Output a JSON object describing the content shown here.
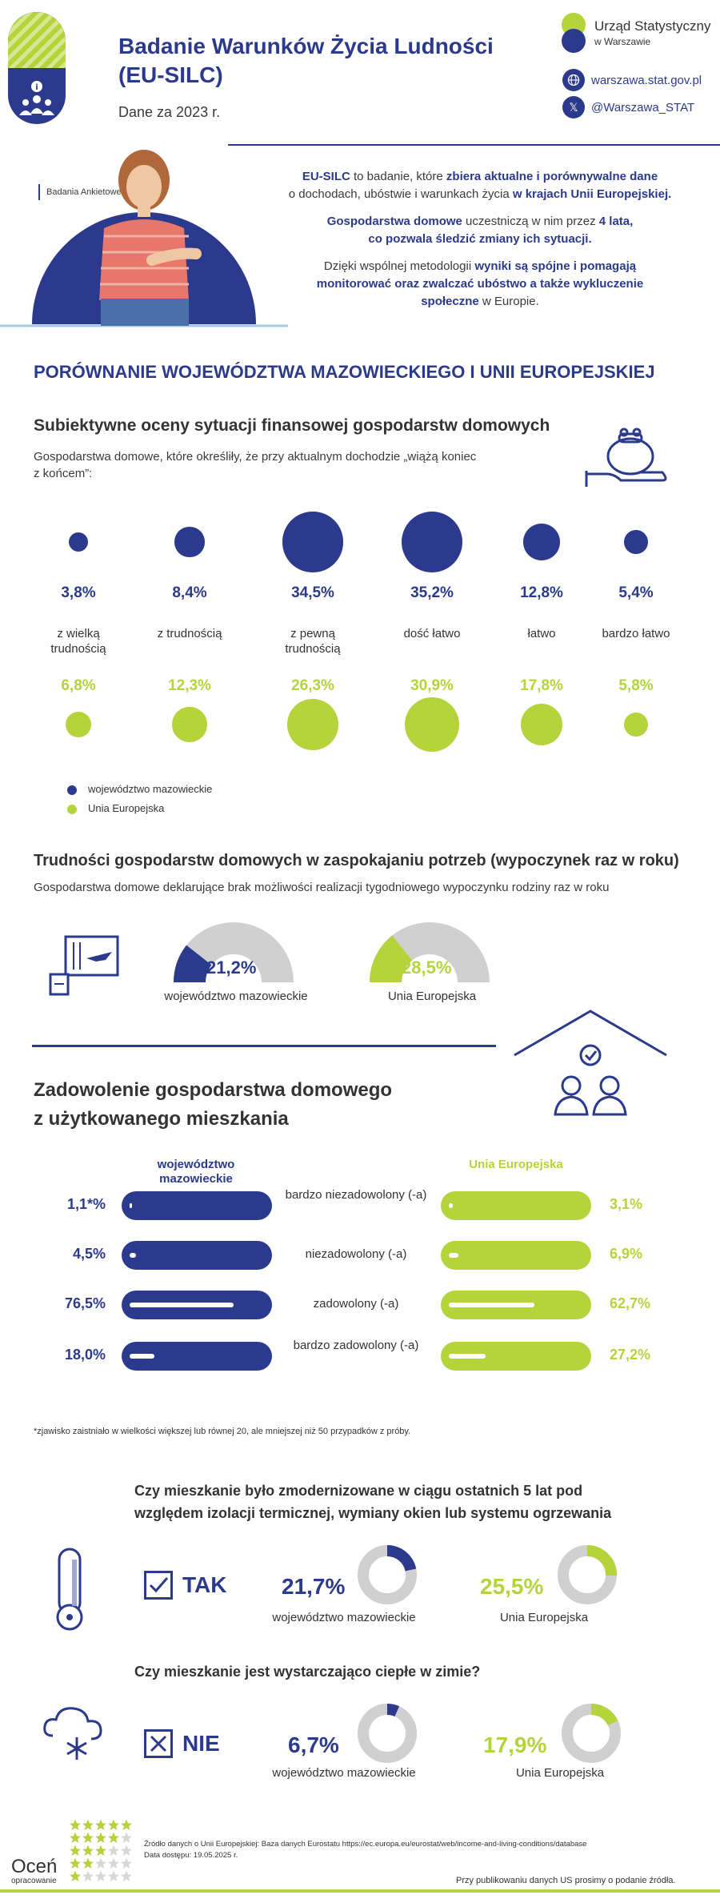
{
  "header": {
    "title": "Badanie Warunków Życia Ludności (EU-SILC)",
    "period": "Dane za 2023 r.",
    "org_name": "Urząd Statystyczny",
    "org_city": "w Warszawie",
    "website": "warszawa.stat.gov.pl",
    "twitter": "@Warszawa_STAT"
  },
  "intro": {
    "tag": "Badania Ankietowe",
    "p1_a": "EU-SILC",
    "p1_b": " to badanie, które ",
    "p1_c": "zbiera aktualne i porównywalne dane",
    "p1_d": " o dochodach, ubóstwie i warunkach życia ",
    "p1_e": "w krajach Unii Europejskiej.",
    "p2_a": "Gospodarstwa domowe",
    "p2_b": " uczestniczą w nim przez ",
    "p2_c": "4 lata,",
    "p2_d": "co pozwala śledzić zmiany ich sytuacji.",
    "p3_a": "Dzięki wspólnej metodologii ",
    "p3_b": "wyniki są spójne i pomagają monitorować oraz zwalczać ubóstwo a także wykluczenie społeczne",
    "p3_c": " w Europie."
  },
  "section_title": "PORÓWNANIE  WOJEWÓDZTWA MAZOWIECKIEGO I UNII EUROPEJSKIEJ",
  "finance": {
    "title": "Subiektywne oceny sytuacji finansowej gospodarstw domowych",
    "desc": "Gospodarstwa domowe, które określiły, że przy aktualnym dochodzie „wiążą koniec z końcem”:",
    "items": [
      {
        "cat": "z wielką trudnością",
        "maz": "3,8%",
        "eu": "6,8%",
        "maz_v": 3.8,
        "eu_v": 6.8
      },
      {
        "cat": "z trudnością",
        "maz": "8,4%",
        "eu": "12,3%",
        "maz_v": 8.4,
        "eu_v": 12.3
      },
      {
        "cat": "z pewną trudnością",
        "maz": "34,5%",
        "eu": "26,3%",
        "maz_v": 34.5,
        "eu_v": 26.3
      },
      {
        "cat": "dość łatwo",
        "maz": "35,2%",
        "eu": "30,9%",
        "maz_v": 35.2,
        "eu_v": 30.9
      },
      {
        "cat": "łatwo",
        "maz": "12,8%",
        "eu": "17,8%",
        "maz_v": 12.8,
        "eu_v": 17.8
      },
      {
        "cat": "bardzo łatwo",
        "maz": "5,4%",
        "eu": "5,8%",
        "maz_v": 5.4,
        "eu_v": 5.8
      }
    ],
    "legend_maz": "województwo mazowieckie",
    "legend_eu": "Unia Europejska",
    "color_maz": "#2b3a8c",
    "color_eu": "#b5d33b"
  },
  "holiday": {
    "title": "Trudności gospodarstw domowych w zaspokajaniu potrzeb (wypoczynek raz w roku)",
    "desc": "Gospodarstwa domowe deklarujące brak możliwości realizacji tygodniowego wypoczynku rodziny raz w roku",
    "maz_value": "21,2%",
    "maz_v": 21.2,
    "maz_label": "województwo mazowieckie",
    "eu_value": "28,5%",
    "eu_v": 28.5,
    "eu_label": "Unia Europejska"
  },
  "satisfaction": {
    "title_1": "Zadowolenie gospodarstwa domowego",
    "title_2": "z użytkowanego mieszkania",
    "head_maz": "województwo mazowieckie",
    "head_eu": "Unia Europejska",
    "rows": [
      {
        "label": "bardzo niezadowolony (-a)",
        "maz": "1,1*%",
        "eu": "3,1%",
        "maz_v": 1.1,
        "eu_v": 3.1
      },
      {
        "label": "niezadowolony (-a)",
        "maz": "4,5%",
        "eu": "6,9%",
        "maz_v": 4.5,
        "eu_v": 6.9
      },
      {
        "label": "zadowolony (-a)",
        "maz": "76,5%",
        "eu": "62,7%",
        "maz_v": 76.5,
        "eu_v": 62.7
      },
      {
        "label": "bardzo zadowolony (-a)",
        "maz": "18,0%",
        "eu": "27,2%",
        "maz_v": 18.0,
        "eu_v": 27.2
      }
    ],
    "footnote": "*zjawisko zaistniało w wielkości większej lub równej 20, ale mniejszej niż 50 przypadków z próby."
  },
  "modernized": {
    "question": "Czy mieszkanie było zmodernizowane w ciągu ostatnich 5 lat pod względem izolacji termicznej, wymiany okien lub systemu ogrzewania",
    "answer": "TAK",
    "maz_value": "21,7%",
    "maz_v": 21.7,
    "maz_label": "województwo mazowieckie",
    "eu_value": "25,5%",
    "eu_v": 25.5,
    "eu_label": "Unia Europejska"
  },
  "warm": {
    "question": "Czy mieszkanie jest wystarczająco ciepłe w zimie?",
    "answer": "NIE",
    "maz_value": "6,7%",
    "maz_v": 6.7,
    "maz_label": "województwo mazowieckie",
    "eu_value": "17,9%",
    "eu_v": 17.9,
    "eu_label": "Unia Europejska"
  },
  "footer": {
    "rate_1": "Oceń",
    "rate_2": "opracowanie",
    "source": "Źródło danych o Unii Europejskiej: Baza danych Eurostatu https://ec.europa.eu/eurostat/web/income-and-living-conditions/database",
    "access": "Data dostępu: 19.05.2025 r.",
    "notice": "Przy publikowaniu danych US prosimy o podanie źródła."
  }
}
